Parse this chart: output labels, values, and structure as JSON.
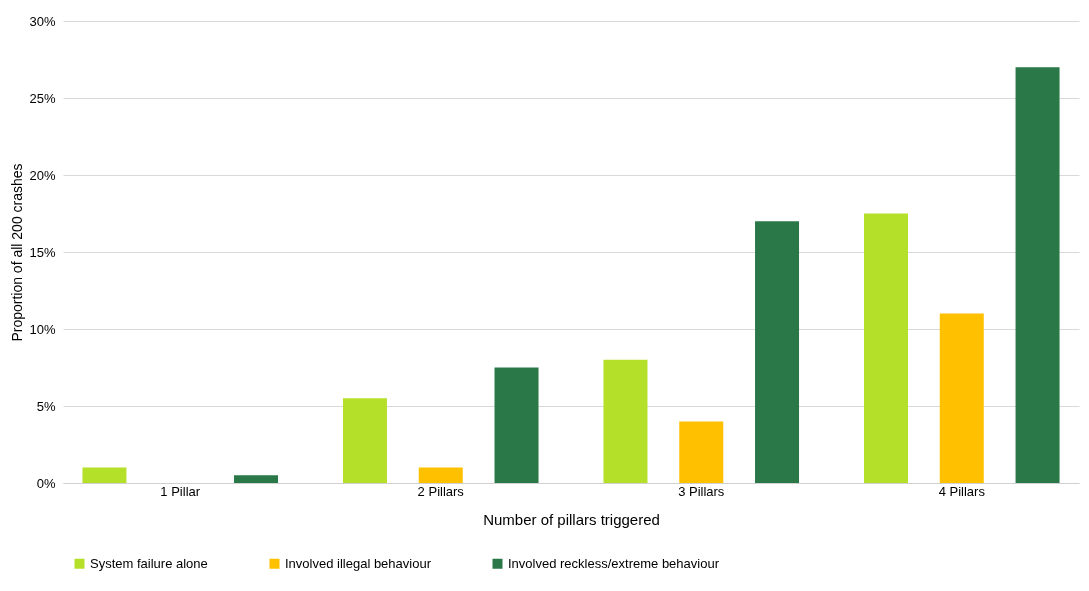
{
  "chart_data": {
    "type": "bar",
    "xlabel": "Number of pillars triggered",
    "ylabel": "Proportion of all 200 crashes",
    "categories": [
      "1 Pillar",
      "2 Pillars",
      "3 Pillars",
      "4 Pillars"
    ],
    "series": [
      {
        "name": "System failure alone",
        "color": "#b5e02a",
        "values": [
          1.0,
          5.5,
          8.0,
          17.5
        ]
      },
      {
        "name": "Involved illegal behaviour",
        "color": "#ffc000",
        "values": [
          0,
          1.0,
          4.0,
          11.0
        ]
      },
      {
        "name": "Involved reckless/extreme behaviour",
        "color": "#2a7848",
        "values": [
          0.5,
          7.5,
          17.0,
          27.0
        ]
      }
    ],
    "ylim": [
      0,
      30
    ],
    "yticks": [
      {
        "value": 0,
        "label": "0%"
      },
      {
        "value": 5,
        "label": "5%"
      },
      {
        "value": 10,
        "label": "10%"
      },
      {
        "value": 15,
        "label": "15%"
      },
      {
        "value": 20,
        "label": "20%"
      },
      {
        "value": 25,
        "label": "25%"
      },
      {
        "value": 30,
        "label": "30%"
      }
    ],
    "grid": "y",
    "legend": "bottom"
  }
}
